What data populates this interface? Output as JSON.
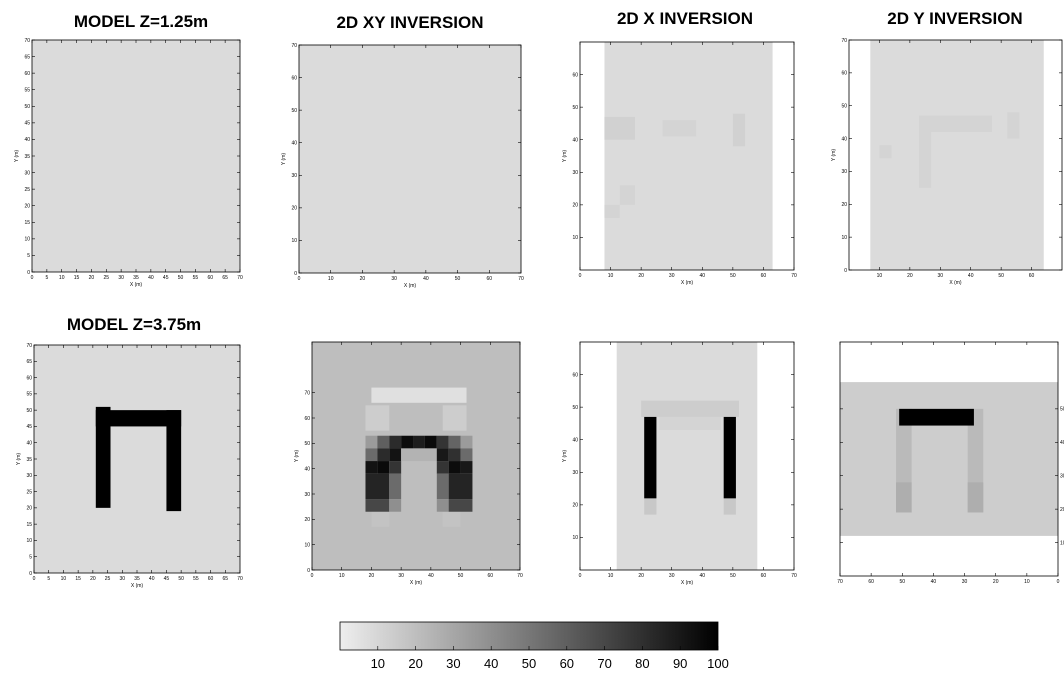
{
  "chart_data": [
    {
      "id": "p1",
      "type": "heatmap",
      "title": "MODEL   Z=1.25m",
      "xlabel": "X (m)",
      "ylabel": "Y (m)",
      "xticks": [
        0,
        5,
        10,
        15,
        20,
        25,
        30,
        35,
        40,
        45,
        50,
        55,
        60,
        65,
        70
      ],
      "yticks": [
        0,
        5,
        10,
        15,
        20,
        25,
        30,
        35,
        40,
        45,
        50,
        55,
        60,
        65,
        70
      ],
      "xlim": [
        0,
        70
      ],
      "ylim": [
        0,
        70
      ],
      "y_tick_side": "left",
      "background": 8,
      "cells": []
    },
    {
      "id": "p2",
      "type": "heatmap",
      "title": "2D XY  INVERSION",
      "xlabel": "X (m)",
      "ylabel": "Y (m)",
      "xticks": [
        0,
        10,
        20,
        30,
        40,
        50,
        60,
        70
      ],
      "yticks": [
        0,
        10,
        20,
        30,
        40,
        50,
        60,
        70
      ],
      "xlim": [
        0,
        70
      ],
      "ylim": [
        0,
        70
      ],
      "y_tick_side": "left",
      "background": 8,
      "cells": []
    },
    {
      "id": "p3",
      "type": "heatmap",
      "title": "2D X  INVERSION",
      "xlabel": "X (m)",
      "ylabel": "Y (m)",
      "xticks": [
        0,
        10,
        20,
        30,
        40,
        50,
        60,
        70
      ],
      "yticks": [
        10,
        20,
        30,
        40,
        50,
        60
      ],
      "xlim": [
        0,
        70
      ],
      "ylim": [
        0,
        70
      ],
      "y_tick_side": "left",
      "background": 8,
      "cells": [
        {
          "x0": 0,
          "x1": 8,
          "y0": 0,
          "y1": 70,
          "v": 0
        },
        {
          "x0": 63,
          "x1": 70,
          "y0": 0,
          "y1": 70,
          "v": 0
        },
        {
          "x0": 8,
          "x1": 18,
          "y0": 40,
          "y1": 47,
          "v": 12
        },
        {
          "x0": 27,
          "x1": 38,
          "y0": 41,
          "y1": 46,
          "v": 11
        },
        {
          "x0": 50,
          "x1": 54,
          "y0": 38,
          "y1": 48,
          "v": 12
        },
        {
          "x0": 13,
          "x1": 18,
          "y0": 20,
          "y1": 26,
          "v": 11
        },
        {
          "x0": 8,
          "x1": 13,
          "y0": 16,
          "y1": 20,
          "v": 11
        }
      ]
    },
    {
      "id": "p4",
      "type": "heatmap",
      "title": "2D Y  INVERSION",
      "xlabel": "X (m)",
      "ylabel": "Y (m)",
      "xticks": [
        10,
        20,
        30,
        40,
        50,
        60
      ],
      "yticks": [
        0,
        10,
        20,
        30,
        40,
        50,
        60,
        70
      ],
      "xlim": [
        0,
        70
      ],
      "ylim": [
        0,
        70
      ],
      "y_tick_side": "left",
      "background": 8,
      "cells": [
        {
          "x0": 0,
          "x1": 7,
          "y0": 0,
          "y1": 70,
          "v": 0
        },
        {
          "x0": 64,
          "x1": 70,
          "y0": 0,
          "y1": 70,
          "v": 0
        },
        {
          "x0": 23,
          "x1": 47,
          "y0": 42,
          "y1": 47,
          "v": 11
        },
        {
          "x0": 23,
          "x1": 27,
          "y0": 25,
          "y1": 42,
          "v": 11
        },
        {
          "x0": 10,
          "x1": 14,
          "y0": 34,
          "y1": 38,
          "v": 11
        },
        {
          "x0": 52,
          "x1": 56,
          "y0": 40,
          "y1": 48,
          "v": 11
        }
      ]
    },
    {
      "id": "p5",
      "type": "heatmap",
      "title": "MODEL   Z=3.75m",
      "xlabel": "X (m)",
      "ylabel": "Y (m)",
      "xticks": [
        0,
        5,
        10,
        15,
        20,
        25,
        30,
        35,
        40,
        45,
        50,
        55,
        60,
        65,
        70
      ],
      "yticks": [
        0,
        5,
        10,
        15,
        20,
        25,
        30,
        35,
        40,
        45,
        50,
        55,
        60,
        65,
        70
      ],
      "xlim": [
        0,
        70
      ],
      "ylim": [
        0,
        70
      ],
      "y_tick_side": "left",
      "background": 8,
      "cells": [
        {
          "x0": 21,
          "x1": 26,
          "y0": 20,
          "y1": 51,
          "v": 100
        },
        {
          "x0": 21,
          "x1": 50,
          "y0": 45,
          "y1": 50,
          "v": 100
        },
        {
          "x0": 45,
          "x1": 50,
          "y0": 19,
          "y1": 50,
          "v": 100
        }
      ]
    },
    {
      "id": "p6",
      "type": "heatmap",
      "title": "",
      "xlabel": "X (m)",
      "ylabel": "Y (m)",
      "xticks": [
        0,
        10,
        20,
        30,
        40,
        50,
        60,
        70
      ],
      "yticks": [
        0,
        10,
        20,
        30,
        40,
        50,
        60,
        70
      ],
      "xlim": [
        0,
        70
      ],
      "ylim": [
        0,
        90
      ],
      "y_tick_side": "left",
      "background": 20,
      "cells": [
        {
          "x0": 20,
          "x1": 52,
          "y0": 66,
          "y1": 72,
          "v": 6
        },
        {
          "x0": 18,
          "x1": 26,
          "y0": 55,
          "y1": 65,
          "v": 14
        },
        {
          "x0": 44,
          "x1": 52,
          "y0": 55,
          "y1": 65,
          "v": 14
        },
        {
          "x0": 20,
          "x1": 26,
          "y0": 17,
          "y1": 23,
          "v": 18
        },
        {
          "x0": 44,
          "x1": 50,
          "y0": 17,
          "y1": 23,
          "v": 18
        },
        {
          "x0": 18,
          "x1": 22,
          "y0": 48,
          "y1": 53,
          "v": 35
        },
        {
          "x0": 22,
          "x1": 26,
          "y0": 48,
          "y1": 53,
          "v": 60
        },
        {
          "x0": 26,
          "x1": 30,
          "y0": 48,
          "y1": 53,
          "v": 82
        },
        {
          "x0": 30,
          "x1": 34,
          "y0": 48,
          "y1": 53,
          "v": 95
        },
        {
          "x0": 34,
          "x1": 38,
          "y0": 48,
          "y1": 53,
          "v": 88
        },
        {
          "x0": 38,
          "x1": 42,
          "y0": 48,
          "y1": 53,
          "v": 96
        },
        {
          "x0": 42,
          "x1": 46,
          "y0": 48,
          "y1": 53,
          "v": 78
        },
        {
          "x0": 46,
          "x1": 50,
          "y0": 48,
          "y1": 53,
          "v": 58
        },
        {
          "x0": 50,
          "x1": 54,
          "y0": 48,
          "y1": 53,
          "v": 35
        },
        {
          "x0": 18,
          "x1": 22,
          "y0": 43,
          "y1": 48,
          "v": 55
        },
        {
          "x0": 22,
          "x1": 26,
          "y0": 43,
          "y1": 48,
          "v": 82
        },
        {
          "x0": 26,
          "x1": 30,
          "y0": 43,
          "y1": 48,
          "v": 92
        },
        {
          "x0": 30,
          "x1": 42,
          "y0": 43,
          "y1": 48,
          "v": 25
        },
        {
          "x0": 42,
          "x1": 46,
          "y0": 43,
          "y1": 48,
          "v": 90
        },
        {
          "x0": 46,
          "x1": 50,
          "y0": 43,
          "y1": 48,
          "v": 80
        },
        {
          "x0": 50,
          "x1": 54,
          "y0": 43,
          "y1": 48,
          "v": 55
        },
        {
          "x0": 18,
          "x1": 22,
          "y0": 38,
          "y1": 43,
          "v": 92
        },
        {
          "x0": 22,
          "x1": 26,
          "y0": 38,
          "y1": 43,
          "v": 96
        },
        {
          "x0": 26,
          "x1": 30,
          "y0": 38,
          "y1": 43,
          "v": 78
        },
        {
          "x0": 42,
          "x1": 46,
          "y0": 38,
          "y1": 43,
          "v": 78
        },
        {
          "x0": 46,
          "x1": 50,
          "y0": 38,
          "y1": 43,
          "v": 95
        },
        {
          "x0": 50,
          "x1": 54,
          "y0": 38,
          "y1": 43,
          "v": 90
        },
        {
          "x0": 18,
          "x1": 26,
          "y0": 28,
          "y1": 38,
          "v": 85
        },
        {
          "x0": 26,
          "x1": 30,
          "y0": 28,
          "y1": 38,
          "v": 55
        },
        {
          "x0": 42,
          "x1": 46,
          "y0": 28,
          "y1": 38,
          "v": 55
        },
        {
          "x0": 46,
          "x1": 54,
          "y0": 28,
          "y1": 38,
          "v": 85
        },
        {
          "x0": 18,
          "x1": 26,
          "y0": 23,
          "y1": 28,
          "v": 70
        },
        {
          "x0": 26,
          "x1": 30,
          "y0": 23,
          "y1": 28,
          "v": 40
        },
        {
          "x0": 42,
          "x1": 46,
          "y0": 23,
          "y1": 28,
          "v": 40
        },
        {
          "x0": 46,
          "x1": 54,
          "y0": 23,
          "y1": 28,
          "v": 70
        }
      ]
    },
    {
      "id": "p7",
      "type": "heatmap",
      "title": "",
      "xlabel": "X (m)",
      "ylabel": "Y (m)",
      "xticks": [
        0,
        10,
        20,
        30,
        40,
        50,
        60,
        70
      ],
      "yticks": [
        10,
        20,
        30,
        40,
        50,
        60
      ],
      "xlim": [
        0,
        70
      ],
      "ylim": [
        0,
        70
      ],
      "y_tick_side": "left",
      "background": 8,
      "cells": [
        {
          "x0": 0,
          "x1": 12,
          "y0": 0,
          "y1": 70,
          "v": 0
        },
        {
          "x0": 58,
          "x1": 70,
          "y0": 0,
          "y1": 70,
          "v": 0
        },
        {
          "x0": 20,
          "x1": 52,
          "y0": 47,
          "y1": 52,
          "v": 14
        },
        {
          "x0": 26,
          "x1": 46,
          "y0": 43,
          "y1": 47,
          "v": 11
        },
        {
          "x0": 21,
          "x1": 25,
          "y0": 17,
          "y1": 22,
          "v": 16
        },
        {
          "x0": 47,
          "x1": 51,
          "y0": 17,
          "y1": 22,
          "v": 16
        },
        {
          "x0": 21,
          "x1": 25,
          "y0": 22,
          "y1": 47,
          "v": 100
        },
        {
          "x0": 47,
          "x1": 51,
          "y0": 22,
          "y1": 47,
          "v": 100
        }
      ]
    },
    {
      "id": "p8",
      "type": "heatmap",
      "title": "",
      "xlabel": "",
      "ylabel": "",
      "xticks": [
        70,
        60,
        50,
        40,
        30,
        20,
        10,
        0
      ],
      "yticks": [
        10,
        20,
        30,
        40,
        50
      ],
      "xlim": [
        70,
        0
      ],
      "ylim": [
        0,
        70
      ],
      "y_tick_side": "right",
      "background": 14,
      "cells": [
        {
          "x0": 70,
          "x1": 0,
          "y0": 0,
          "y1": 12,
          "v": 0
        },
        {
          "x0": 70,
          "x1": 0,
          "y0": 58,
          "y1": 70,
          "v": 0
        },
        {
          "x0": 52,
          "x1": 47,
          "y0": 19,
          "y1": 50,
          "v": 22
        },
        {
          "x0": 29,
          "x1": 24,
          "y0": 19,
          "y1": 50,
          "v": 22
        },
        {
          "x0": 52,
          "x1": 47,
          "y0": 19,
          "y1": 28,
          "v": 27
        },
        {
          "x0": 29,
          "x1": 24,
          "y0": 19,
          "y1": 28,
          "v": 27
        },
        {
          "x0": 51,
          "x1": 27,
          "y0": 45,
          "y1": 50,
          "v": 100
        }
      ]
    }
  ],
  "colorbar": {
    "ticks": [
      "10",
      "20",
      "30",
      "40",
      "50",
      "60",
      "70",
      "80",
      "90",
      "100"
    ],
    "min": 0,
    "max": 100,
    "light": "#eeeeee",
    "dark": "#000000"
  }
}
